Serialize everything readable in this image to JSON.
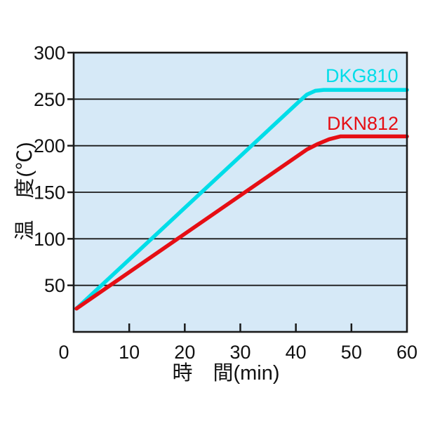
{
  "chart_data": {
    "type": "line",
    "title": "",
    "xlabel": "時　間(min)",
    "ylabel": "温　度(℃)",
    "xlim": [
      0,
      60
    ],
    "ylim": [
      0,
      300
    ],
    "x_ticks": [
      0,
      10,
      20,
      30,
      40,
      50,
      60
    ],
    "y_ticks": [
      50,
      100,
      150,
      200,
      250,
      300
    ],
    "grid": "horizontal-only",
    "legend_position": "inline-labels-right",
    "plot_bg_color": "#d6e9f7",
    "axis_color": "#1a1a1a",
    "tick_label_color": "#111111",
    "series": [
      {
        "name": "DKG810",
        "color": "#00dde8",
        "points": [
          [
            0.5,
            25
          ],
          [
            40.5,
            247
          ],
          [
            42,
            255
          ],
          [
            43.5,
            259
          ],
          [
            45,
            260
          ],
          [
            60,
            260
          ]
        ]
      },
      {
        "name": "DKN812",
        "color": "#e60e14",
        "points": [
          [
            0.5,
            25
          ],
          [
            42,
            196
          ],
          [
            44,
            202
          ],
          [
            46,
            207
          ],
          [
            48,
            210
          ],
          [
            60,
            210
          ]
        ]
      }
    ]
  }
}
